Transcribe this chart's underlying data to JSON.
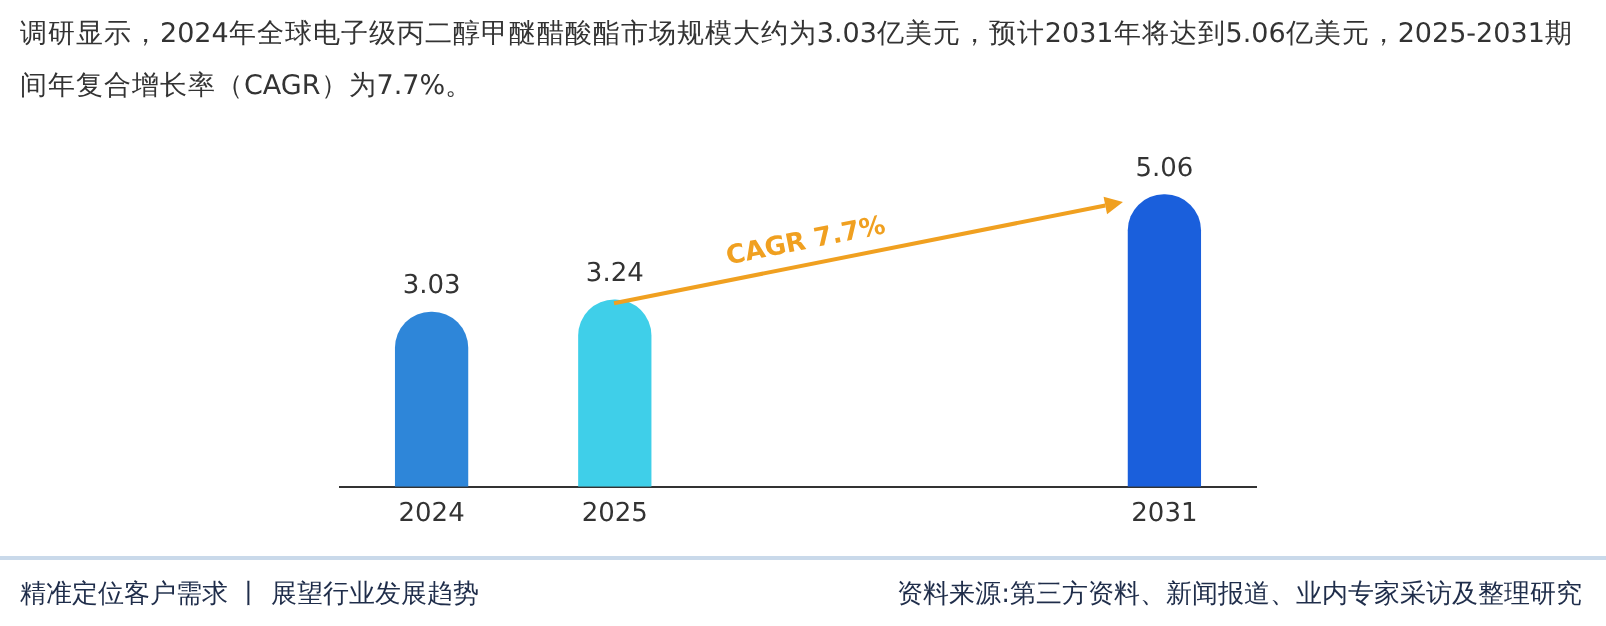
{
  "chart_data": {
    "type": "bar",
    "title": "调研显示，2024年全球电子级丙二醇甲醚醋酸酯市场规模大约为3.03亿美元，预计2031年将达到5.06亿美元，2025-2031期间年复合增长率（CAGR）为7.7%。",
    "categories": [
      "2024",
      "2025",
      null,
      null,
      "2031"
    ],
    "values": [
      3.03,
      3.24,
      null,
      null,
      5.06
    ],
    "colors": [
      "#2e86d9",
      "#3fcfe9",
      "#3fcfe9",
      "#3fcfe9",
      "#1a5fdc"
    ],
    "data_labels": true,
    "legend": false,
    "grid": false,
    "annotations": [
      "CAGR 7.7%",
      "精准定位客户需求 丨 展望行业发展趋势",
      "资料来源:第三方资料、新闻报道、业内专家采访及整理研究"
    ]
  }
}
